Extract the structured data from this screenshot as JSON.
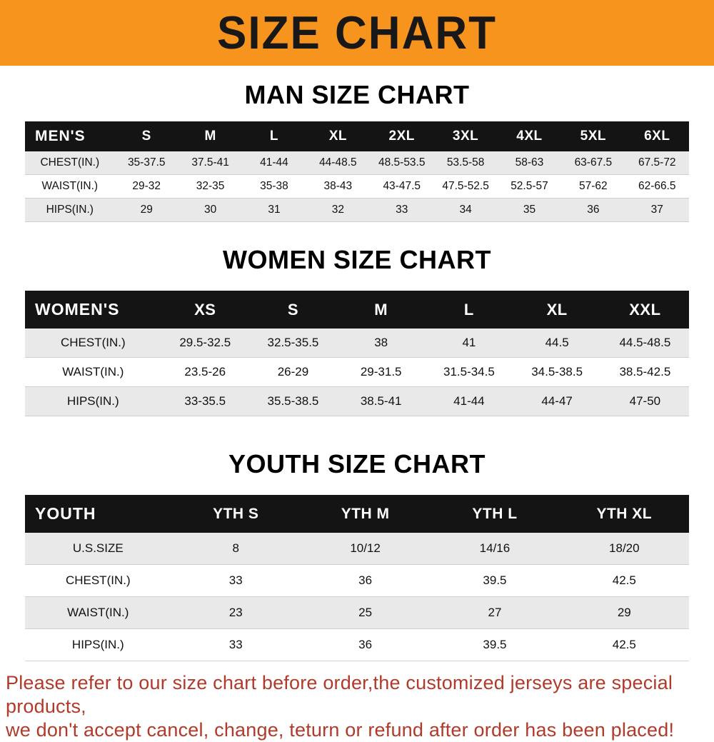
{
  "banner": {
    "title": "SIZE CHART"
  },
  "colors": {
    "banner_orange": "#f7941e",
    "table_header_black": "#141414",
    "row_alt_gray": "#e9e9e9",
    "footer_red": "#b23a2b"
  },
  "chart_data": [
    {
      "type": "table",
      "title": "MAN SIZE CHART",
      "header": [
        "MEN'S",
        "S",
        "M",
        "L",
        "XL",
        "2XL",
        "3XL",
        "4XL",
        "5XL",
        "6XL"
      ],
      "rows": [
        [
          "CHEST(IN.)",
          "35-37.5",
          "37.5-41",
          "41-44",
          "44-48.5",
          "48.5-53.5",
          "53.5-58",
          "58-63",
          "63-67.5",
          "67.5-72"
        ],
        [
          "WAIST(IN.)",
          "29-32",
          "32-35",
          "35-38",
          "38-43",
          "43-47.5",
          "47.5-52.5",
          "52.5-57",
          "57-62",
          "62-66.5"
        ],
        [
          "HIPS(IN.)",
          "29",
          "30",
          "31",
          "32",
          "33",
          "34",
          "35",
          "36",
          "37"
        ]
      ]
    },
    {
      "type": "table",
      "title": "WOMEN SIZE CHART",
      "header": [
        "WOMEN'S",
        "XS",
        "S",
        "M",
        "L",
        "XL",
        "XXL"
      ],
      "rows": [
        [
          "CHEST(IN.)",
          "29.5-32.5",
          "32.5-35.5",
          "38",
          "41",
          "44.5",
          "44.5-48.5"
        ],
        [
          "WAIST(IN.)",
          "23.5-26",
          "26-29",
          "29-31.5",
          "31.5-34.5",
          "34.5-38.5",
          "38.5-42.5"
        ],
        [
          "HIPS(IN.)",
          "33-35.5",
          "35.5-38.5",
          "38.5-41",
          "41-44",
          "44-47",
          "47-50"
        ]
      ]
    },
    {
      "type": "table",
      "title": "YOUTH SIZE CHART",
      "header": [
        "YOUTH",
        "YTH S",
        "YTH M",
        "YTH L",
        "YTH XL"
      ],
      "rows": [
        [
          "U.S.SIZE",
          "8",
          "10/12",
          "14/16",
          "18/20"
        ],
        [
          "CHEST(IN.)",
          "33",
          "36",
          "39.5",
          "42.5"
        ],
        [
          "WAIST(IN.)",
          "23",
          "25",
          "27",
          "29"
        ],
        [
          "HIPS(IN.)",
          "33",
          "36",
          "39.5",
          "42.5"
        ]
      ]
    }
  ],
  "footer": {
    "line1": "Please refer to our size chart before order,the customized jerseys are special products,",
    "line2": "we don't accept cancel, change, teturn or refund after order has been placed!"
  }
}
